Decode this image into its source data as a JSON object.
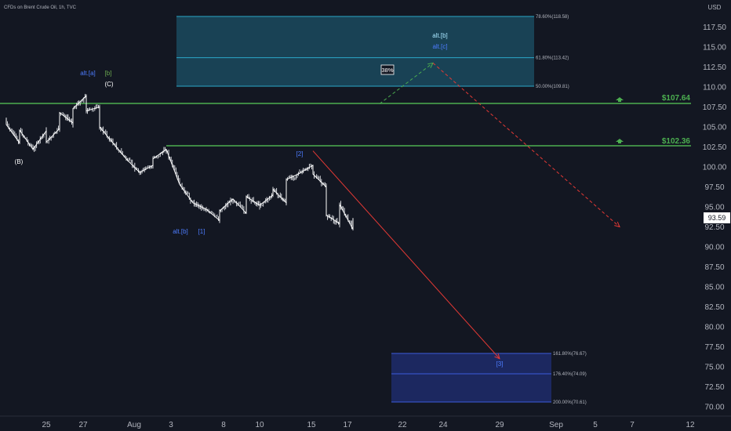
{
  "header": {
    "symbol_line": "CFDs on Brent Crude Oil, 1h, TVC",
    "currency": "USD"
  },
  "price_axis": {
    "ticks": [
      "117.50",
      "115.00",
      "112.50",
      "110.00",
      "107.50",
      "105.00",
      "102.50",
      "100.00",
      "97.50",
      "95.00",
      "92.50",
      "90.00",
      "87.50",
      "85.00",
      "82.50",
      "80.00",
      "77.50",
      "75.00",
      "72.50",
      "70.00"
    ],
    "last_price": "93.59"
  },
  "time_axis": {
    "ticks": [
      "25",
      "27",
      "Aug",
      "3",
      "8",
      "10",
      "15",
      "17",
      "22",
      "24",
      "29",
      "Sep",
      "5",
      "7",
      "12"
    ]
  },
  "levels": {
    "upper_label": "$107.64",
    "lower_label": "$102.36"
  },
  "fib_upper": {
    "top": "78.60%(118.58)",
    "mid": "61.80%(113.42)",
    "bottom": "50.00%(109.81)"
  },
  "fib_lower": {
    "top": "161.80%(76.67)",
    "mid": "176.40%(74.09)",
    "bottom": "200.00%(70.61)"
  },
  "wave_labels": {
    "alt_a": "alt.[a]",
    "b_green": "[b]",
    "C": "(C)",
    "B": "(B)",
    "alt_b_top": "alt.[b]",
    "alt_c_top": "alt.[c]",
    "pct": "38%",
    "w2": "[2]",
    "alt_b_low": "alt.[b]",
    "w1": "[1]",
    "w3": "[3]"
  },
  "colors": {
    "background": "#131722",
    "candles": "#e6e8ec",
    "green_line": "#4caf50",
    "red_line": "#e53935",
    "upper_box": "#1b4a5e",
    "lower_box": "#1f2c6b",
    "wave_blue": "#2962ff"
  },
  "chart_data": {
    "type": "line",
    "title": "CFDs on Brent Crude Oil, 1h, TVC",
    "ylim": [
      69.5,
      121
    ],
    "y_ticks": [
      117.5,
      115,
      112.5,
      110,
      107.5,
      105,
      102.5,
      100,
      97.5,
      95,
      92.5,
      90,
      87.5,
      85,
      82.5,
      80,
      77.5,
      75,
      72.5,
      70
    ],
    "x_ticks": [
      "25",
      "27",
      "Aug",
      "3",
      "8",
      "10",
      "15",
      "17",
      "22",
      "24",
      "29",
      "Sep",
      "5",
      "7",
      "12"
    ],
    "series": [
      {
        "name": "CFDs on Brent Crude Oil",
        "points": [
          [
            "Jul 22",
            106.0
          ],
          [
            "Jul 22",
            105.3
          ],
          [
            "Jul 23",
            103.0
          ],
          [
            "Jul 23",
            104.6
          ],
          [
            "Jul 24",
            102.2
          ],
          [
            "Jul 25",
            104.5
          ],
          [
            "Jul 25",
            103.1
          ],
          [
            "Jul 26",
            104.8
          ],
          [
            "Jul 26",
            106.8
          ],
          [
            "Jul 27",
            105.5
          ],
          [
            "Jul 27",
            107.3
          ],
          [
            "Jul 28",
            108.9
          ],
          [
            "Jul 28",
            107.0
          ],
          [
            "Jul 29",
            107.5
          ],
          [
            "Jul 29",
            105.0
          ],
          [
            "Jul 30",
            103.0
          ],
          [
            "Jul 31",
            101.0
          ],
          [
            "Aug 1",
            99.3
          ],
          [
            "Aug 2",
            100.2
          ],
          [
            "Aug 2",
            101.0
          ],
          [
            "Aug 3",
            102.2
          ],
          [
            "Aug 4",
            97.8
          ],
          [
            "Aug 5",
            95.5
          ],
          [
            "Aug 6",
            94.7
          ],
          [
            "Aug 7",
            93.3
          ],
          [
            "Aug 7",
            94.5
          ],
          [
            "Aug 8",
            96.0
          ],
          [
            "Aug 9",
            94.2
          ],
          [
            "Aug 9",
            96.3
          ],
          [
            "Aug 10",
            95.2
          ],
          [
            "Aug 11",
            96.5
          ],
          [
            "Aug 11",
            97.2
          ],
          [
            "Aug 12",
            95.5
          ],
          [
            "Aug 12",
            98.4
          ],
          [
            "Aug 13",
            99.2
          ],
          [
            "Aug 14",
            100.2
          ],
          [
            "Aug 14",
            99.1
          ],
          [
            "Aug 15",
            97.5
          ],
          [
            "Aug 15",
            94.0
          ],
          [
            "Aug 16",
            92.9
          ],
          [
            "Aug 16",
            95.3
          ],
          [
            "Aug 17",
            92.2
          ],
          [
            "Aug 17",
            93.6
          ]
        ]
      },
      {
        "name": "",
        "points": [
          [
            "Aug 14",
            102.0
          ],
          [
            "Aug 28",
            76.0
          ]
        ]
      },
      {
        "name": "",
        "points": [
          [
            "Aug 19",
            107.9
          ],
          [
            "Aug 23",
            113.0
          ]
        ]
      },
      {
        "name": "",
        "points": [
          [
            "Aug 23",
            113.0
          ],
          [
            "Sep 6",
            92.5
          ]
        ]
      }
    ],
    "horizontal_lines": [
      107.64,
      102.36
    ],
    "zones": [
      {
        "from": 109.81,
        "to": 118.58,
        "levels": [
          118.58,
          113.42,
          109.81
        ]
      },
      {
        "from": 70.61,
        "to": 76.67,
        "levels": [
          76.67,
          74.09,
          70.61
        ]
      }
    ],
    "last_value": 93.59
  }
}
